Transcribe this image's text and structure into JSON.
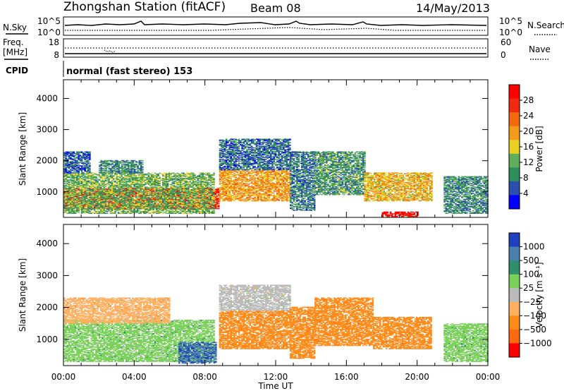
{
  "header": {
    "station": "Zhongshan Station (fitACF)",
    "beam": "Beam 08",
    "date": "14/May/2013"
  },
  "status_panel": {
    "nsky_label": "N.Sky",
    "nsearch_label": "N.Search",
    "nsky_ticks": [
      "10^5",
      "10^0"
    ],
    "nsearch_ticks": [
      "10^5",
      "10^0"
    ],
    "freq_label_1": "Freq.",
    "freq_label_2": "[MHz]",
    "freq_ticks": [
      "18",
      "8"
    ],
    "nave_label": "Nave",
    "nave_ticks": [
      "60",
      "0"
    ],
    "cpid_label": "CPID",
    "cpid_value": "normal (fast stereo) 153"
  },
  "colors": {
    "power": [
      "#0000ff",
      "#2d4fb0",
      "#2f8f5a",
      "#5fae5c",
      "#e8d020",
      "#f59a1a",
      "#f26a10",
      "#ee2a10",
      "#ff0000"
    ],
    "velocity": [
      "#2040c0",
      "#4a7fb0",
      "#2f8f6a",
      "#7bd25a",
      "#bbbbbb",
      "#ffb060",
      "#ff8c1a",
      "#ff6a10",
      "#ff0000"
    ]
  },
  "chart_data": [
    {
      "type": "heatmap",
      "panel": "power",
      "ylabel": "Slant Range [km]",
      "yticks": [
        "1000",
        "2000",
        "3000",
        "4000"
      ],
      "ylim": [
        180,
        4600
      ],
      "xlim": [
        "00:00",
        "24:00"
      ],
      "colorbar_label": "Power [dB]",
      "colorbar_ticks": [
        "4",
        "8",
        "12",
        "16",
        "20",
        "24",
        "28"
      ],
      "colorbar_range": [
        0,
        32
      ],
      "regions": [
        {
          "t0": 0.0,
          "t1": 8.8,
          "r0": 450,
          "r1": 1100,
          "value": 28
        },
        {
          "t0": 0.0,
          "t1": 8.5,
          "r0": 300,
          "r1": 1600,
          "value": 12
        },
        {
          "t0": 0.0,
          "t1": 1.5,
          "r0": 1600,
          "r1": 2300,
          "value": 6
        },
        {
          "t0": 2.0,
          "t1": 4.5,
          "r0": 1600,
          "r1": 2000,
          "value": 9
        },
        {
          "t0": 8.8,
          "t1": 12.8,
          "r0": 700,
          "r1": 1700,
          "value": 20
        },
        {
          "t0": 8.8,
          "t1": 12.8,
          "r0": 1700,
          "r1": 2700,
          "value": 7
        },
        {
          "t0": 12.8,
          "t1": 14.2,
          "r0": 400,
          "r1": 2300,
          "value": 8
        },
        {
          "t0": 14.2,
          "t1": 17.0,
          "r0": 900,
          "r1": 2300,
          "value": 10
        },
        {
          "t0": 17.0,
          "t1": 20.8,
          "r0": 700,
          "r1": 1600,
          "value": 18
        },
        {
          "t0": 18.0,
          "t1": 20.0,
          "r0": 200,
          "r1": 350,
          "value": 30
        },
        {
          "t0": 21.5,
          "t1": 24.0,
          "r0": 300,
          "r1": 1500,
          "value": 9
        }
      ]
    },
    {
      "type": "heatmap",
      "panel": "velocity",
      "ylabel": "Slant Range [km]",
      "yticks": [
        "1000",
        "2000",
        "3000",
        "4000"
      ],
      "ylim": [
        180,
        4600
      ],
      "xlim": [
        "00:00",
        "24:00"
      ],
      "xticks": [
        "00:00",
        "04:00",
        "08:00",
        "12:00",
        "16:00",
        "20:00",
        "00:00"
      ],
      "xlabel": "Time UT",
      "colorbar_label": "Velocity [m s⁻¹]",
      "colorbar_ticks": [
        "1000",
        "500",
        "100",
        "25",
        "−25",
        "−100",
        "−500",
        "−1000"
      ],
      "regions": [
        {
          "t0": 0.0,
          "t1": 8.5,
          "r0": 300,
          "r1": 1600,
          "value": 40
        },
        {
          "t0": 6.5,
          "t1": 8.6,
          "r0": 250,
          "r1": 900,
          "value": 900
        },
        {
          "t0": 0.0,
          "t1": 6.0,
          "r0": 1500,
          "r1": 2300,
          "value": -60
        },
        {
          "t0": 8.8,
          "t1": 12.8,
          "r0": 700,
          "r1": 1900,
          "value": -300
        },
        {
          "t0": 8.8,
          "t1": 12.8,
          "r0": 1900,
          "r1": 2700,
          "value": 0
        },
        {
          "t0": 12.8,
          "t1": 14.2,
          "r0": 400,
          "r1": 2000,
          "value": -300
        },
        {
          "t0": 14.2,
          "t1": 17.5,
          "r0": 800,
          "r1": 2300,
          "value": -300
        },
        {
          "t0": 17.5,
          "t1": 20.8,
          "r0": 700,
          "r1": 1700,
          "value": -300
        },
        {
          "t0": 21.5,
          "t1": 24.0,
          "r0": 300,
          "r1": 1500,
          "value": 60
        }
      ]
    }
  ]
}
